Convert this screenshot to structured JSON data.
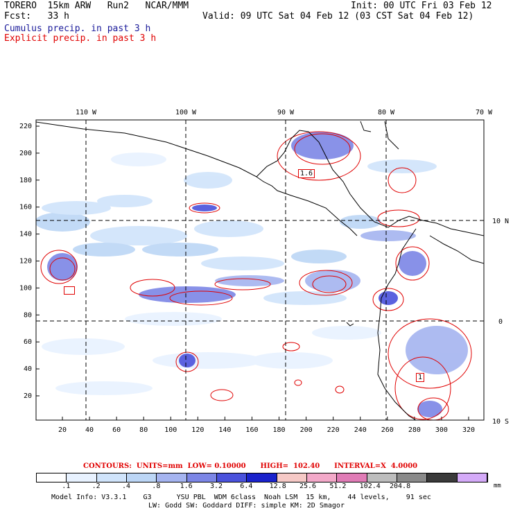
{
  "header": {
    "model": "TORERO  15km ARW   Run2   NCAR/MMM",
    "init": "Init: 00 UTC Fri 03 Feb 12",
    "fcst": "Fcst:   33 h",
    "valid": "Valid: 09 UTC Sat 04 Feb 12 (03 CST Sat 04 Feb 12)",
    "cumulus": "Cumulus precip. in past 3 h",
    "explicit": "Explicit precip. in past 3 h"
  },
  "axes": {
    "top_lon_labels": [
      "110 W",
      "100 W",
      "90 W",
      "80 W",
      "70 W"
    ],
    "right_lat_labels": [
      "10 N",
      "0",
      "10 S"
    ],
    "y_ticks": [
      "220",
      "200",
      "180",
      "160",
      "140",
      "120",
      "100",
      "80",
      "60",
      "40",
      "20"
    ],
    "x_ticks": [
      "20",
      "40",
      "60",
      "80",
      "100",
      "120",
      "140",
      "160",
      "180",
      "200",
      "220",
      "240",
      "260",
      "280",
      "300",
      "320"
    ]
  },
  "contour_labels": [
    "1.6",
    "1"
  ],
  "contours_line": {
    "text": "CONTOURS:  UNITS=mm  LOW= 0.10000      HIGH=  102.40      INTERVAL=X  4.0000"
  },
  "colorbar": {
    "colors": [
      "#ffffff",
      "#e8f2ff",
      "#d0e4fb",
      "#bcd6f6",
      "#a5b4f0",
      "#7c86e6",
      "#4a52dc",
      "#1a22cc",
      "#f6c9c6",
      "#f3a9c9",
      "#e07cb6",
      "#bdbdbd",
      "#8a8a8a",
      "#3a3a3a",
      "#d4aaf8"
    ],
    "labels": [
      ".1",
      ".2",
      ".4",
      ".8",
      "1.6",
      "3.2",
      "6.4",
      "12.8",
      "25.6",
      "51.2",
      "102.4",
      "204.8"
    ],
    "unit": "mm"
  },
  "model_info": {
    "line1": "Model Info: V3.3.1    G3      YSU PBL  WDM 6class  Noah LSM  15 km,    44 levels,    91 sec",
    "line2": "LW: Godd SW: Goddard DIFF: simple KM: 2D Smagor"
  }
}
